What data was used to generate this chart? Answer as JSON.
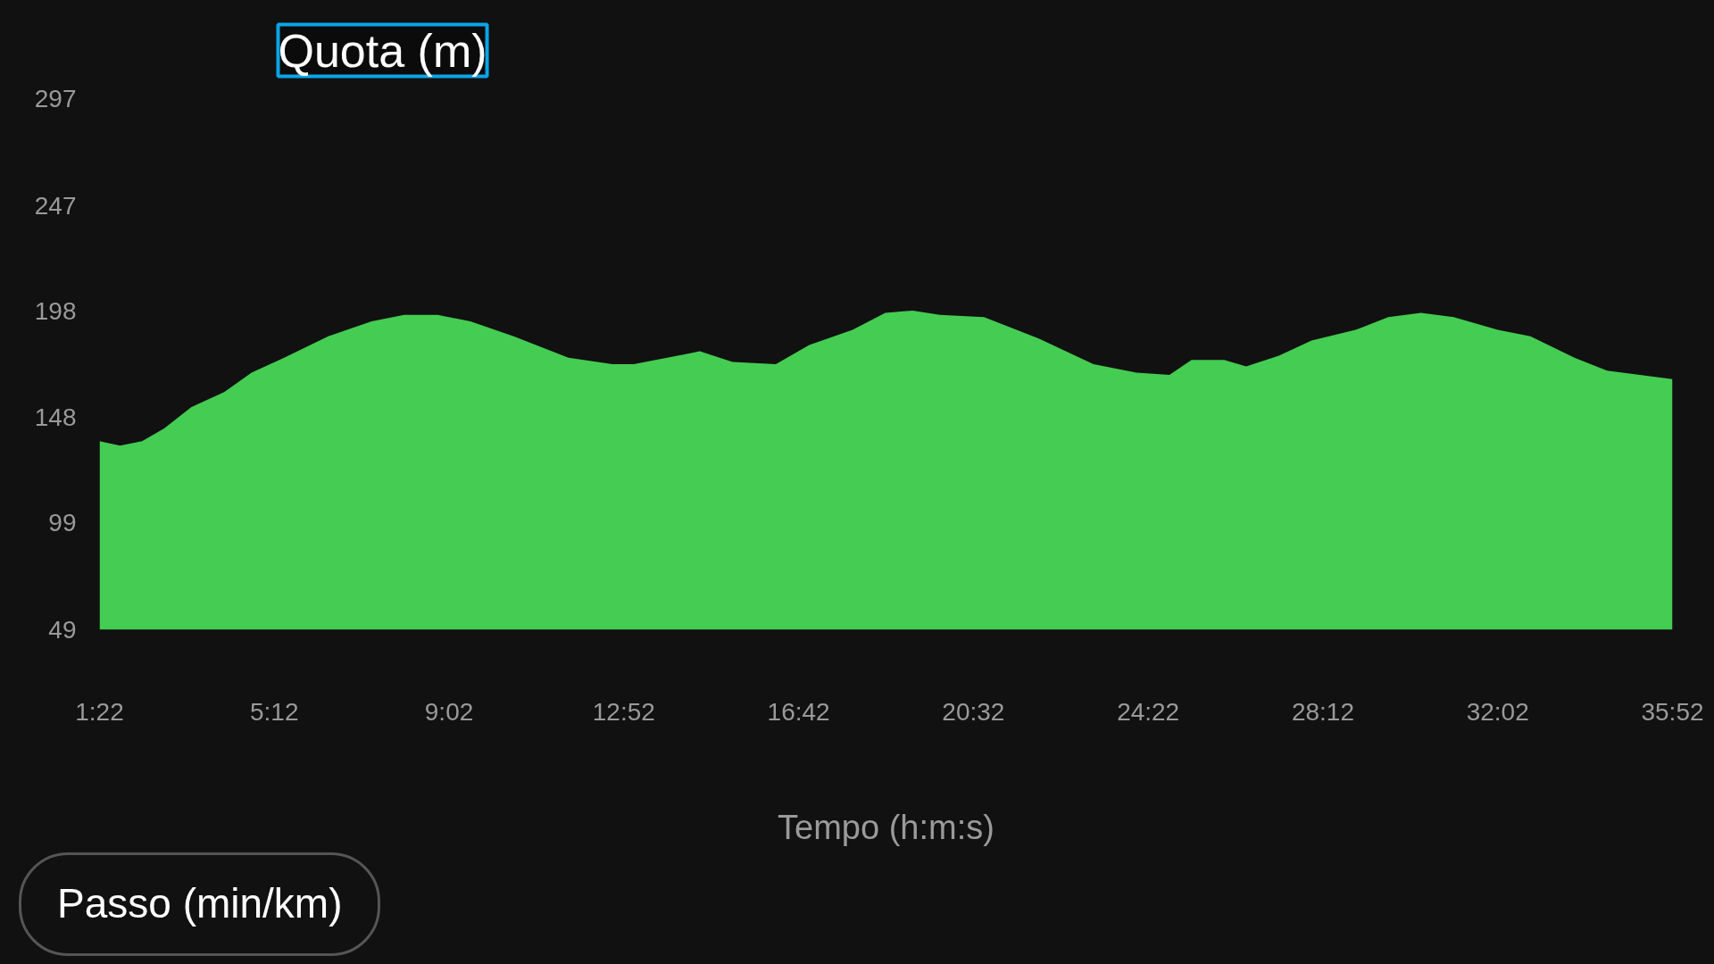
{
  "chart_data": {
    "type": "area",
    "title": "Quota (m)",
    "xlabel": "Tempo (h:m:s)",
    "annotations": [
      "Passo (min/km)"
    ],
    "color": "#45cc52",
    "x": [
      82,
      109,
      138,
      167,
      203,
      246,
      282,
      325,
      383,
      440,
      483,
      527,
      570,
      627,
      699,
      757,
      785,
      829,
      872,
      915,
      972,
      1016,
      1073,
      1116,
      1152,
      1188,
      1246,
      1318,
      1390,
      1447,
      1490,
      1519,
      1562,
      1591,
      1634,
      1677,
      1735,
      1778,
      1821,
      1864,
      1922,
      1965,
      2023,
      2066,
      2109,
      2152
    ],
    "values": [
      137,
      135,
      137,
      143,
      153,
      160,
      169,
      176,
      186,
      193,
      196,
      196,
      193,
      186,
      176,
      173,
      173,
      176,
      179,
      174,
      173,
      182,
      189,
      197,
      198,
      196,
      195,
      185,
      173,
      169,
      168,
      175,
      175,
      172,
      177,
      184,
      189,
      195,
      197,
      195,
      189,
      186,
      176,
      170,
      168,
      166
    ],
    "xlim": [
      82,
      2152
    ],
    "ylim": [
      49,
      297
    ],
    "xticks": [
      {
        "value": 82,
        "label": "1:22"
      },
      {
        "value": 312,
        "label": "5:12"
      },
      {
        "value": 542,
        "label": "9:02"
      },
      {
        "value": 772,
        "label": "12:52"
      },
      {
        "value": 1002,
        "label": "16:42"
      },
      {
        "value": 1232,
        "label": "20:32"
      },
      {
        "value": 1462,
        "label": "24:22"
      },
      {
        "value": 1692,
        "label": "28:12"
      },
      {
        "value": 1922,
        "label": "32:02"
      },
      {
        "value": 2152,
        "label": "35:52"
      }
    ],
    "yticks": [
      49,
      99,
      148,
      198,
      247,
      297
    ]
  }
}
